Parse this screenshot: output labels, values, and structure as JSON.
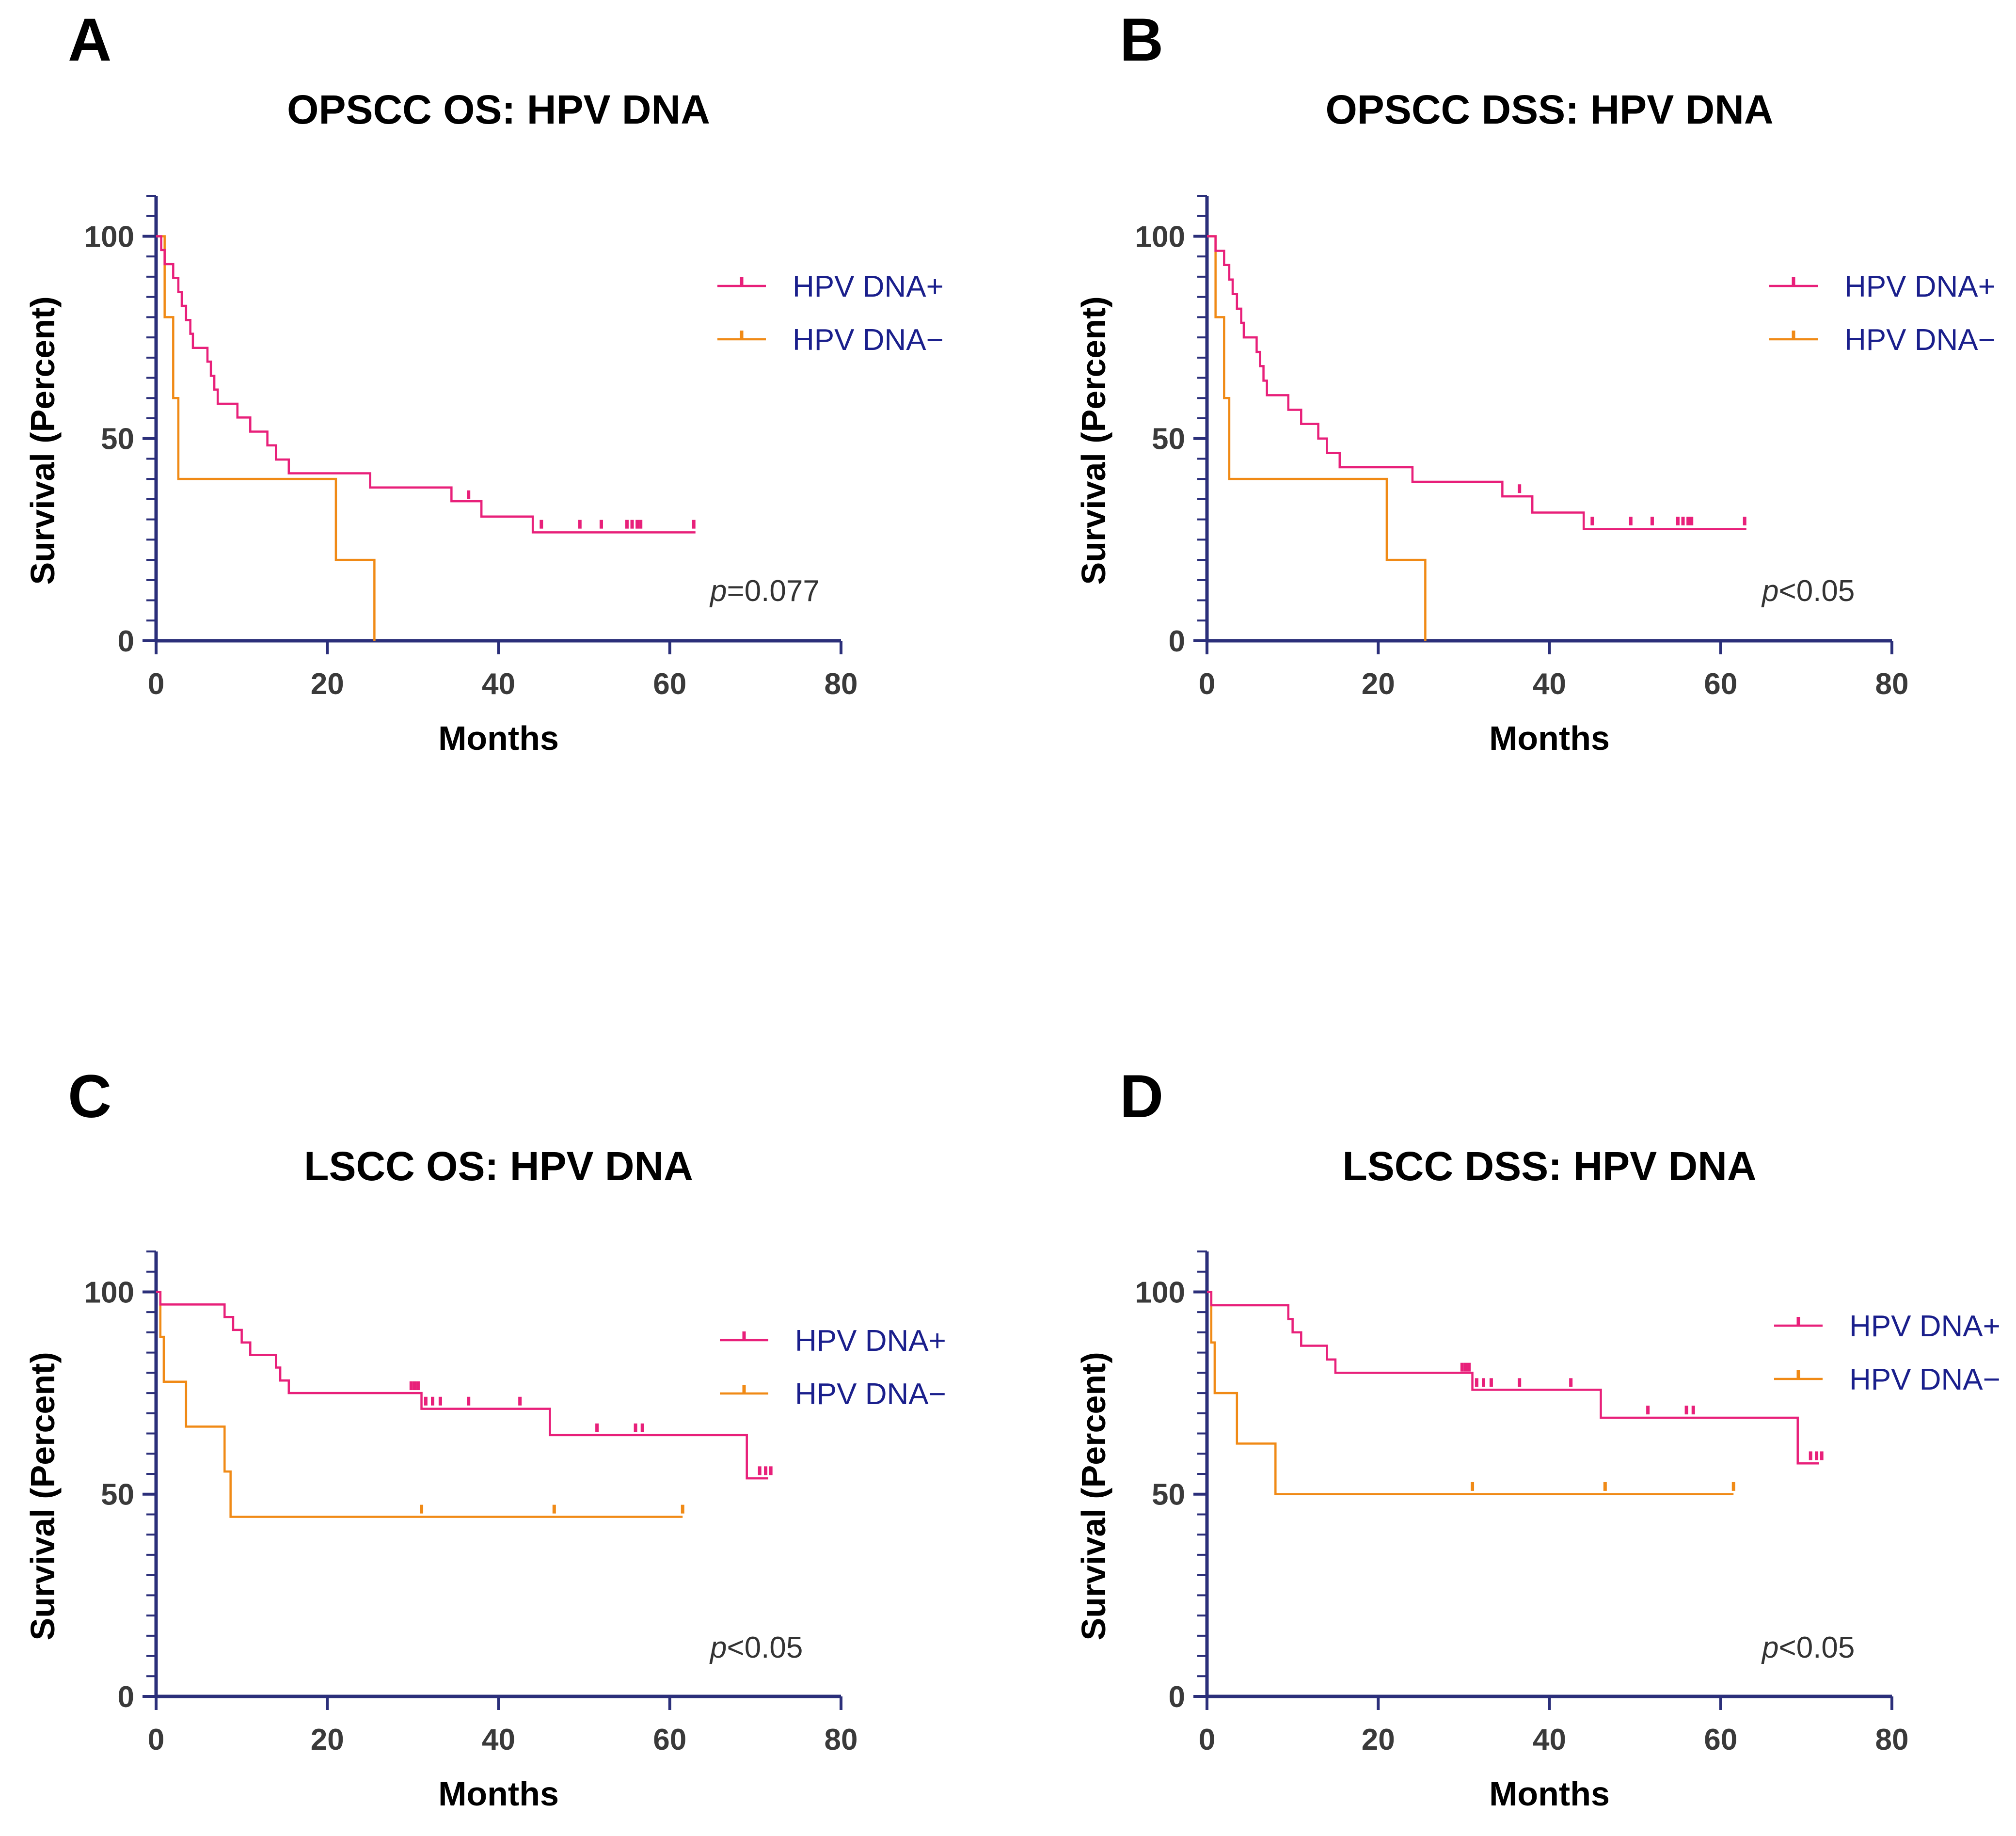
{
  "colors": {
    "axis": "#2b2f7a",
    "hpv_pos": "#e8207a",
    "hpv_neg": "#f08a16",
    "legend_text": "#1a1f8c"
  },
  "chart_data": [
    {
      "panel": "A",
      "type": "line",
      "title": "OPSCC OS: HPV DNA",
      "xlabel": "Months",
      "ylabel": "Survival (Percent)",
      "xlim": [
        0,
        80
      ],
      "ylim": [
        0,
        110
      ],
      "xticks": [
        0,
        20,
        40,
        60,
        80
      ],
      "yticks": [
        0,
        50,
        100
      ],
      "p_prefix": "p",
      "p_rest": "=0.077",
      "series": [
        {
          "name": "HPV DNA+",
          "color": "#e8207a",
          "steps": [
            [
              0,
              100
            ],
            [
              0.6,
              96.6
            ],
            [
              1,
              93.1
            ],
            [
              2,
              89.7
            ],
            [
              2.6,
              86.2
            ],
            [
              3,
              82.8
            ],
            [
              3.5,
              79.3
            ],
            [
              4,
              75.9
            ],
            [
              4.3,
              72.4
            ],
            [
              6,
              69.0
            ],
            [
              6.4,
              65.5
            ],
            [
              6.8,
              62.1
            ],
            [
              7.2,
              58.6
            ],
            [
              9.5,
              55.2
            ],
            [
              11,
              51.7
            ],
            [
              13,
              48.3
            ],
            [
              14,
              44.8
            ],
            [
              15.5,
              41.4
            ],
            [
              25,
              37.9
            ],
            [
              34.5,
              34.5
            ],
            [
              38,
              30.7
            ],
            [
              44,
              26.8
            ],
            [
              63,
              26.8
            ]
          ],
          "censors": [
            [
              36.5,
              35.5
            ],
            [
              45,
              28.2
            ],
            [
              49.5,
              28.2
            ],
            [
              52,
              28.2
            ],
            [
              55,
              28.2
            ],
            [
              55.6,
              28.2
            ],
            [
              56.2,
              28.2
            ],
            [
              56.6,
              28.2
            ],
            [
              62.8,
              28.2
            ]
          ]
        },
        {
          "name": "HPV DNA−",
          "color": "#f08a16",
          "steps": [
            [
              0,
              100
            ],
            [
              1,
              80
            ],
            [
              2,
              60
            ],
            [
              2.6,
              40
            ],
            [
              21,
              20
            ],
            [
              25.5,
              0
            ]
          ],
          "censors": []
        }
      ]
    },
    {
      "panel": "B",
      "type": "line",
      "title": "OPSCC DSS: HPV DNA",
      "xlabel": "Months",
      "ylabel": "Survival (Percent)",
      "xlim": [
        0,
        80
      ],
      "ylim": [
        0,
        110
      ],
      "xticks": [
        0,
        20,
        40,
        60,
        80
      ],
      "yticks": [
        0,
        50,
        100
      ],
      "p_prefix": "p",
      "p_rest": "<0.05",
      "series": [
        {
          "name": "HPV DNA+",
          "color": "#e8207a",
          "steps": [
            [
              0,
              100
            ],
            [
              1,
              96.4
            ],
            [
              2,
              92.9
            ],
            [
              2.6,
              89.3
            ],
            [
              3,
              85.7
            ],
            [
              3.5,
              82.1
            ],
            [
              4,
              78.6
            ],
            [
              4.3,
              75
            ],
            [
              5.8,
              71.4
            ],
            [
              6.2,
              67.9
            ],
            [
              6.6,
              64.3
            ],
            [
              7,
              60.7
            ],
            [
              9.5,
              57.1
            ],
            [
              11,
              53.6
            ],
            [
              13,
              50
            ],
            [
              14,
              46.4
            ],
            [
              15.5,
              42.9
            ],
            [
              24,
              39.3
            ],
            [
              34.5,
              35.7
            ],
            [
              38,
              31.7
            ],
            [
              44,
              27.6
            ],
            [
              63,
              27.6
            ]
          ],
          "censors": [
            [
              36.5,
              37
            ],
            [
              45,
              29
            ],
            [
              49.5,
              29
            ],
            [
              52,
              29
            ],
            [
              55,
              29
            ],
            [
              55.6,
              29
            ],
            [
              56.2,
              29
            ],
            [
              56.6,
              29
            ],
            [
              62.8,
              29
            ]
          ]
        },
        {
          "name": "HPV DNA−",
          "color": "#f08a16",
          "steps": [
            [
              0,
              100
            ],
            [
              1,
              80
            ],
            [
              2,
              60
            ],
            [
              2.6,
              40
            ],
            [
              21,
              20
            ],
            [
              25.5,
              0
            ]
          ],
          "censors": []
        }
      ]
    },
    {
      "panel": "C",
      "type": "line",
      "title": "LSCC OS: HPV DNA",
      "xlabel": "Months",
      "ylabel": "Survival (Percent)",
      "xlim": [
        0,
        80
      ],
      "ylim": [
        0,
        110
      ],
      "xticks": [
        0,
        20,
        40,
        60,
        80
      ],
      "yticks": [
        0,
        50,
        100
      ],
      "p_prefix": "p",
      "p_rest": "<0.05",
      "series": [
        {
          "name": "HPV DNA+",
          "color": "#e8207a",
          "steps": [
            [
              0,
              100
            ],
            [
              0.5,
              96.9
            ],
            [
              8,
              93.8
            ],
            [
              9,
              90.6
            ],
            [
              10,
              87.5
            ],
            [
              11,
              84.4
            ],
            [
              14,
              81.3
            ],
            [
              14.5,
              78.1
            ],
            [
              15.5,
              75
            ],
            [
              31,
              71.1
            ],
            [
              46,
              64.6
            ],
            [
              69,
              53.9
            ],
            [
              71.5,
              53.9
            ]
          ],
          "censors": [
            [
              29.8,
              76.2
            ],
            [
              30.2,
              76.2
            ],
            [
              30.6,
              76.2
            ],
            [
              31.5,
              72.4
            ],
            [
              32.3,
              72.4
            ],
            [
              33.2,
              72.4
            ],
            [
              36.5,
              72.4
            ],
            [
              42.5,
              72.4
            ],
            [
              51.5,
              65.8
            ],
            [
              56,
              65.8
            ],
            [
              56.8,
              65.8
            ],
            [
              70.5,
              55.2
            ],
            [
              71.2,
              55.2
            ],
            [
              71.8,
              55.2
            ]
          ]
        },
        {
          "name": "HPV DNA−",
          "color": "#f08a16",
          "steps": [
            [
              0,
              100
            ],
            [
              0.5,
              88.9
            ],
            [
              0.9,
              77.8
            ],
            [
              3.5,
              66.7
            ],
            [
              8,
              55.6
            ],
            [
              8.7,
              44.4
            ],
            [
              61.5,
              44.4
            ]
          ],
          "censors": [
            [
              31,
              45.7
            ],
            [
              46.5,
              45.7
            ],
            [
              61.5,
              45.7
            ]
          ]
        }
      ]
    },
    {
      "panel": "D",
      "type": "line",
      "title": "LSCC DSS: HPV DNA",
      "xlabel": "Months",
      "ylabel": "Survival (Percent)",
      "xlim": [
        0,
        80
      ],
      "ylim": [
        0,
        110
      ],
      "xticks": [
        0,
        20,
        40,
        60,
        80
      ],
      "yticks": [
        0,
        50,
        100
      ],
      "p_prefix": "p",
      "p_rest": "<0.05",
      "series": [
        {
          "name": "HPV DNA+",
          "color": "#e8207a",
          "steps": [
            [
              0,
              100
            ],
            [
              0.5,
              96.7
            ],
            [
              9.5,
              93.3
            ],
            [
              10,
              90
            ],
            [
              11,
              86.7
            ],
            [
              14,
              83.3
            ],
            [
              15,
              80
            ],
            [
              31,
              75.8
            ],
            [
              46,
              68.9
            ],
            [
              69,
              57.6
            ],
            [
              71.5,
              57.6
            ]
          ],
          "censors": [
            [
              29.8,
              80.8
            ],
            [
              30.2,
              80.8
            ],
            [
              30.6,
              80.8
            ],
            [
              31.5,
              77
            ],
            [
              32.3,
              77
            ],
            [
              33.2,
              77
            ],
            [
              36.5,
              77
            ],
            [
              42.5,
              77
            ],
            [
              51.5,
              70.2
            ],
            [
              56,
              70.2
            ],
            [
              56.8,
              70.2
            ],
            [
              70.5,
              58.9
            ],
            [
              71.2,
              58.9
            ],
            [
              71.8,
              58.9
            ]
          ]
        },
        {
          "name": "HPV DNA−",
          "color": "#f08a16",
          "steps": [
            [
              0,
              100
            ],
            [
              0.5,
              87.5
            ],
            [
              0.9,
              75
            ],
            [
              3.5,
              62.5
            ],
            [
              8,
              50
            ],
            [
              61.5,
              50
            ]
          ],
          "censors": [
            [
              31,
              51.3
            ],
            [
              46.5,
              51.3
            ],
            [
              61.5,
              51.3
            ]
          ]
        }
      ]
    }
  ]
}
